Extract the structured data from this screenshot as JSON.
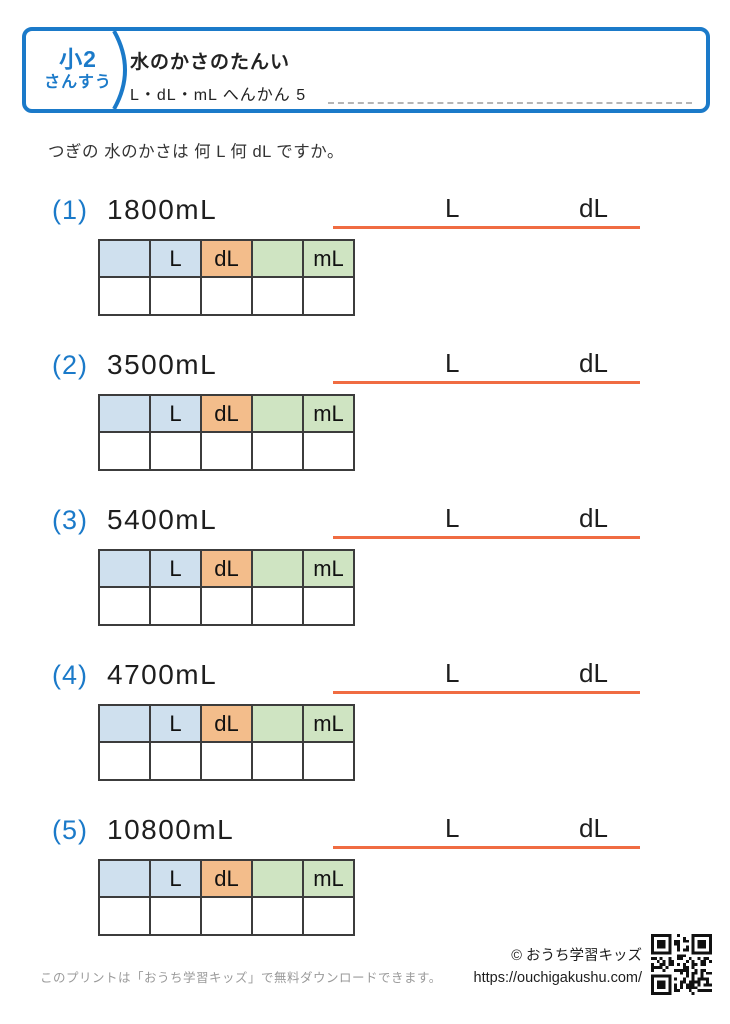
{
  "header": {
    "grade": "小2",
    "subject": "さんすう",
    "title": "水のかさのたんい",
    "subtitle": "L・dL・mL へんかん 5"
  },
  "instruction": "つぎの 水のかさは 何 L 何 dL ですか。",
  "answer_units": {
    "l": "L",
    "dl": "dL"
  },
  "place_value_table": {
    "headers": [
      "",
      "L",
      "dL",
      "",
      "mL"
    ]
  },
  "problems": [
    {
      "number": "(1)",
      "value": "1800mL"
    },
    {
      "number": "(2)",
      "value": "3500mL"
    },
    {
      "number": "(3)",
      "value": "5400mL"
    },
    {
      "number": "(4)",
      "value": "4700mL"
    },
    {
      "number": "(5)",
      "value": "10800mL"
    }
  ],
  "footer": {
    "note": "このプリントは「おうち学習キッズ」で無料ダウンロードできます。",
    "copyright": "© おうち学習キッズ",
    "url": "https://ouchigakushu.com/"
  },
  "colors": {
    "accent_blue": "#1b7ac9",
    "cell_blue": "#cfe0ee",
    "cell_orange": "#f3bd8b",
    "cell_green": "#cfe4c2",
    "answer_line_orange": "#f06c42"
  }
}
